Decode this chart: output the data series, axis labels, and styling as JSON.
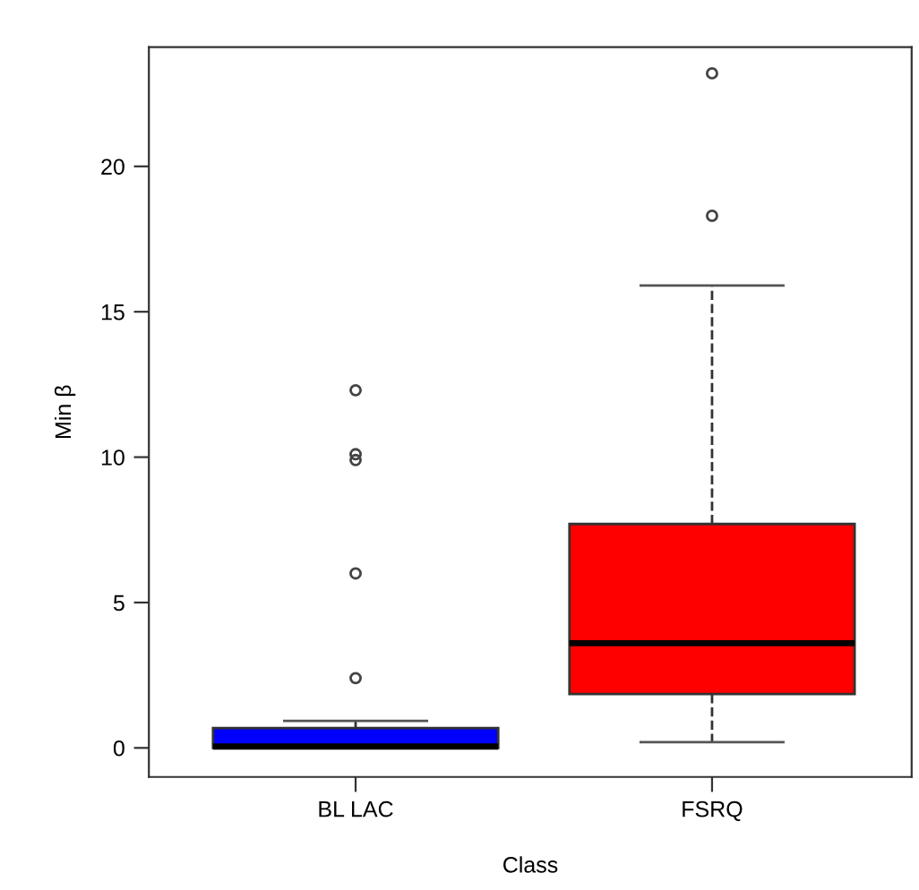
{
  "chart_data": {
    "type": "box",
    "xlabel": "Class",
    "ylabel": "Min β",
    "categories": [
      "BL LAC",
      "FSRQ"
    ],
    "colors": [
      "#0000ff",
      "#ff0000"
    ],
    "boxes": [
      {
        "low": 0,
        "q1": 0,
        "median": 0.05,
        "q3": 0.68,
        "high": 0.93,
        "outliers": [
          2.4,
          6.0,
          9.9,
          10.1,
          12.3
        ]
      },
      {
        "low": 0.2,
        "q1": 1.85,
        "median": 3.6,
        "q3": 7.7,
        "high": 15.9,
        "outliers": [
          18.3,
          23.2
        ]
      }
    ],
    "ylim": [
      -1,
      24.1
    ],
    "yticks": [
      0,
      5,
      10,
      15,
      20
    ],
    "grid": false
  }
}
